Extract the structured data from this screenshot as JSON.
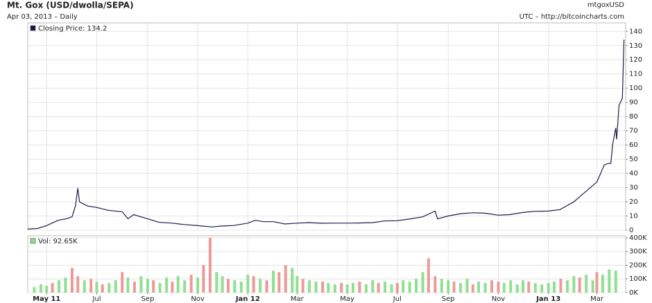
{
  "source": "mtgoxUSD",
  "note": "UTC – http://bitcoincharts.com",
  "chart_data": [
    {
      "type": "line",
      "title": "Mt. Gox (USD/dwolla/SEPA)",
      "subtitle": "Apr 03, 2013 – Daily",
      "xlim": [
        "2011-04-08",
        "2013-04-05"
      ],
      "ylim": [
        0,
        146
      ],
      "yticks": [
        0,
        10,
        20,
        30,
        40,
        50,
        60,
        70,
        80,
        90,
        100,
        110,
        120,
        130,
        140
      ],
      "grid": true,
      "series": [
        {
          "name": "Closing Price: 134.2",
          "color": "#1a1a4a",
          "x": [
            "2011-04-08",
            "2011-04-20",
            "2011-05-01",
            "2011-05-15",
            "2011-05-25",
            "2011-06-01",
            "2011-06-05",
            "2011-06-08",
            "2011-06-10",
            "2011-06-13",
            "2011-06-20",
            "2011-07-01",
            "2011-07-15",
            "2011-08-01",
            "2011-08-08",
            "2011-08-15",
            "2011-09-01",
            "2011-09-15",
            "2011-10-01",
            "2011-10-15",
            "2011-11-01",
            "2011-11-18",
            "2011-12-01",
            "2011-12-15",
            "2012-01-01",
            "2012-01-10",
            "2012-01-20",
            "2012-02-01",
            "2012-02-15",
            "2012-03-01",
            "2012-03-15",
            "2012-04-01",
            "2012-04-15",
            "2012-05-01",
            "2012-05-15",
            "2012-06-01",
            "2012-06-15",
            "2012-07-01",
            "2012-07-15",
            "2012-08-01",
            "2012-08-16",
            "2012-08-19",
            "2012-09-01",
            "2012-09-15",
            "2012-10-01",
            "2012-10-15",
            "2012-11-01",
            "2012-11-15",
            "2012-12-01",
            "2012-12-15",
            "2013-01-01",
            "2013-01-15",
            "2013-02-01",
            "2013-02-15",
            "2013-03-01",
            "2013-03-10",
            "2013-03-15",
            "2013-03-18",
            "2013-03-20",
            "2013-03-24",
            "2013-03-25",
            "2013-03-28",
            "2013-04-01",
            "2013-04-03"
          ],
          "values": [
            0.8,
            1.2,
            3.2,
            7,
            8,
            9.5,
            17,
            29.6,
            20,
            19,
            17,
            16,
            14,
            13,
            8,
            11,
            8,
            5.5,
            5,
            4,
            3.2,
            2.3,
            3,
            3.3,
            5,
            7,
            6,
            6,
            4.4,
            5,
            5.3,
            4.9,
            5,
            5,
            5.1,
            5.3,
            6.5,
            6.7,
            7.8,
            9.4,
            13.5,
            8,
            10,
            11.5,
            12.3,
            12,
            10.6,
            11,
            12.5,
            13.3,
            13.5,
            14.5,
            20,
            27,
            34,
            46,
            47,
            47,
            60,
            72,
            64,
            88,
            93,
            134.2
          ]
        }
      ]
    },
    {
      "type": "bar",
      "xlim": [
        "2011-04-08",
        "2013-04-05"
      ],
      "ylim": [
        0,
        415000
      ],
      "yticks": [
        {
          "value": 0,
          "label": "0K"
        },
        {
          "value": 100000,
          "label": "100K"
        },
        {
          "value": 200000,
          "label": "200K"
        },
        {
          "value": 300000,
          "label": "300K"
        },
        {
          "value": 400000,
          "label": "400K"
        }
      ],
      "xticks": [
        {
          "value": "2011-05-01",
          "label": "May 11"
        },
        {
          "value": "2011-07-01",
          "label": "Jul"
        },
        {
          "value": "2011-09-01",
          "label": "Sep"
        },
        {
          "value": "2011-11-01",
          "label": "Nov"
        },
        {
          "value": "2012-01-01",
          "label": "Jan 12"
        },
        {
          "value": "2012-03-01",
          "label": "Mar"
        },
        {
          "value": "2012-05-01",
          "label": "May"
        },
        {
          "value": "2012-07-01",
          "label": "Jul"
        },
        {
          "value": "2012-09-01",
          "label": "Sep"
        },
        {
          "value": "2012-11-01",
          "label": "Nov"
        },
        {
          "value": "2013-01-01",
          "label": "Jan 13"
        },
        {
          "value": "2013-03-01",
          "label": "Mar"
        }
      ],
      "grid": true,
      "series": [
        {
          "name": "Vol: 92.65K",
          "color": "#8fe08f",
          "x": [
            "2011-04-16",
            "2011-04-24",
            "2011-05-01",
            "2011-05-08",
            "2011-05-16",
            "2011-05-24",
            "2011-06-01",
            "2011-06-08",
            "2011-06-16",
            "2011-06-24",
            "2011-07-01",
            "2011-07-08",
            "2011-07-16",
            "2011-07-24",
            "2011-08-01",
            "2011-08-08",
            "2011-08-16",
            "2011-08-24",
            "2011-09-01",
            "2011-09-08",
            "2011-09-16",
            "2011-09-24",
            "2011-10-01",
            "2011-10-08",
            "2011-10-16",
            "2011-10-24",
            "2011-11-01",
            "2011-11-08",
            "2011-11-16",
            "2011-11-24",
            "2011-12-01",
            "2011-12-08",
            "2011-12-16",
            "2011-12-24",
            "2012-01-01",
            "2012-01-08",
            "2012-01-16",
            "2012-01-24",
            "2012-02-01",
            "2012-02-08",
            "2012-02-16",
            "2012-02-24",
            "2012-03-01",
            "2012-03-08",
            "2012-03-16",
            "2012-03-24",
            "2012-04-01",
            "2012-04-08",
            "2012-04-16",
            "2012-04-24",
            "2012-05-01",
            "2012-05-08",
            "2012-05-16",
            "2012-05-24",
            "2012-06-01",
            "2012-06-08",
            "2012-06-16",
            "2012-06-24",
            "2012-07-01",
            "2012-07-08",
            "2012-07-16",
            "2012-07-24",
            "2012-08-01",
            "2012-08-08",
            "2012-08-16",
            "2012-08-24",
            "2012-09-01",
            "2012-09-08",
            "2012-09-16",
            "2012-09-24",
            "2012-10-01",
            "2012-10-08",
            "2012-10-16",
            "2012-10-24",
            "2012-11-01",
            "2012-11-08",
            "2012-11-16",
            "2012-11-24",
            "2012-12-01",
            "2012-12-08",
            "2012-12-16",
            "2012-12-24",
            "2013-01-01",
            "2013-01-08",
            "2013-01-16",
            "2013-01-24",
            "2013-02-01",
            "2013-02-08",
            "2013-02-16",
            "2013-02-24",
            "2013-03-01",
            "2013-03-08",
            "2013-03-16",
            "2013-03-24"
          ],
          "values": [
            40000,
            60000,
            50000,
            70000,
            90000,
            110000,
            180000,
            120000,
            90000,
            100000,
            80000,
            60000,
            70000,
            90000,
            150000,
            110000,
            80000,
            120000,
            100000,
            90000,
            70000,
            110000,
            80000,
            120000,
            90000,
            130000,
            110000,
            200000,
            400000,
            150000,
            120000,
            100000,
            90000,
            80000,
            130000,
            120000,
            100000,
            90000,
            160000,
            150000,
            200000,
            180000,
            120000,
            100000,
            90000,
            80000,
            80000,
            70000,
            60000,
            70000,
            60000,
            70000,
            80000,
            60000,
            90000,
            70000,
            80000,
            60000,
            70000,
            90000,
            80000,
            100000,
            150000,
            250000,
            120000,
            100000,
            90000,
            80000,
            70000,
            100000,
            60000,
            80000,
            70000,
            90000,
            80000,
            70000,
            90000,
            60000,
            90000,
            80000,
            70000,
            60000,
            70000,
            80000,
            100000,
            90000,
            120000,
            110000,
            130000,
            90000,
            150000,
            130000,
            170000,
            160000
          ],
          "colors": [
            "#8fe08f",
            "#8fe08f",
            "#8fe08f",
            "#e99",
            "#8fe08f",
            "#8fe08f",
            "#e99",
            "#e99",
            "#8fe08f",
            "#e99",
            "#8fe08f",
            "#e99",
            "#8fe08f",
            "#8fe08f",
            "#e99",
            "#8fe08f",
            "#e99",
            "#8fe08f",
            "#8fe08f",
            "#e99",
            "#8fe08f",
            "#8fe08f",
            "#e99",
            "#8fe08f",
            "#8fe08f",
            "#e99",
            "#8fe08f",
            "#e99",
            "#e99",
            "#8fe08f",
            "#8fe08f",
            "#e99",
            "#8fe08f",
            "#8fe08f",
            "#8fe08f",
            "#e99",
            "#8fe08f",
            "#e99",
            "#8fe08f",
            "#e99",
            "#e99",
            "#8fe08f",
            "#8fe08f",
            "#e99",
            "#8fe08f",
            "#8fe08f",
            "#e99",
            "#8fe08f",
            "#8fe08f",
            "#e99",
            "#8fe08f",
            "#8fe08f",
            "#e99",
            "#8fe08f",
            "#8fe08f",
            "#e99",
            "#8fe08f",
            "#8fe08f",
            "#e99",
            "#8fe08f",
            "#8fe08f",
            "#8fe08f",
            "#8fe08f",
            "#e99",
            "#e99",
            "#8fe08f",
            "#8fe08f",
            "#e99",
            "#8fe08f",
            "#8fe08f",
            "#e99",
            "#8fe08f",
            "#8fe08f",
            "#e99",
            "#e99",
            "#8fe08f",
            "#8fe08f",
            "#8fe08f",
            "#8fe08f",
            "#e99",
            "#8fe08f",
            "#8fe08f",
            "#8fe08f",
            "#8fe08f",
            "#e99",
            "#8fe08f",
            "#8fe08f",
            "#e99",
            "#8fe08f",
            "#8fe08f",
            "#e99",
            "#8fe08f",
            "#8fe08f",
            "#8fe08f"
          ]
        }
      ]
    }
  ]
}
